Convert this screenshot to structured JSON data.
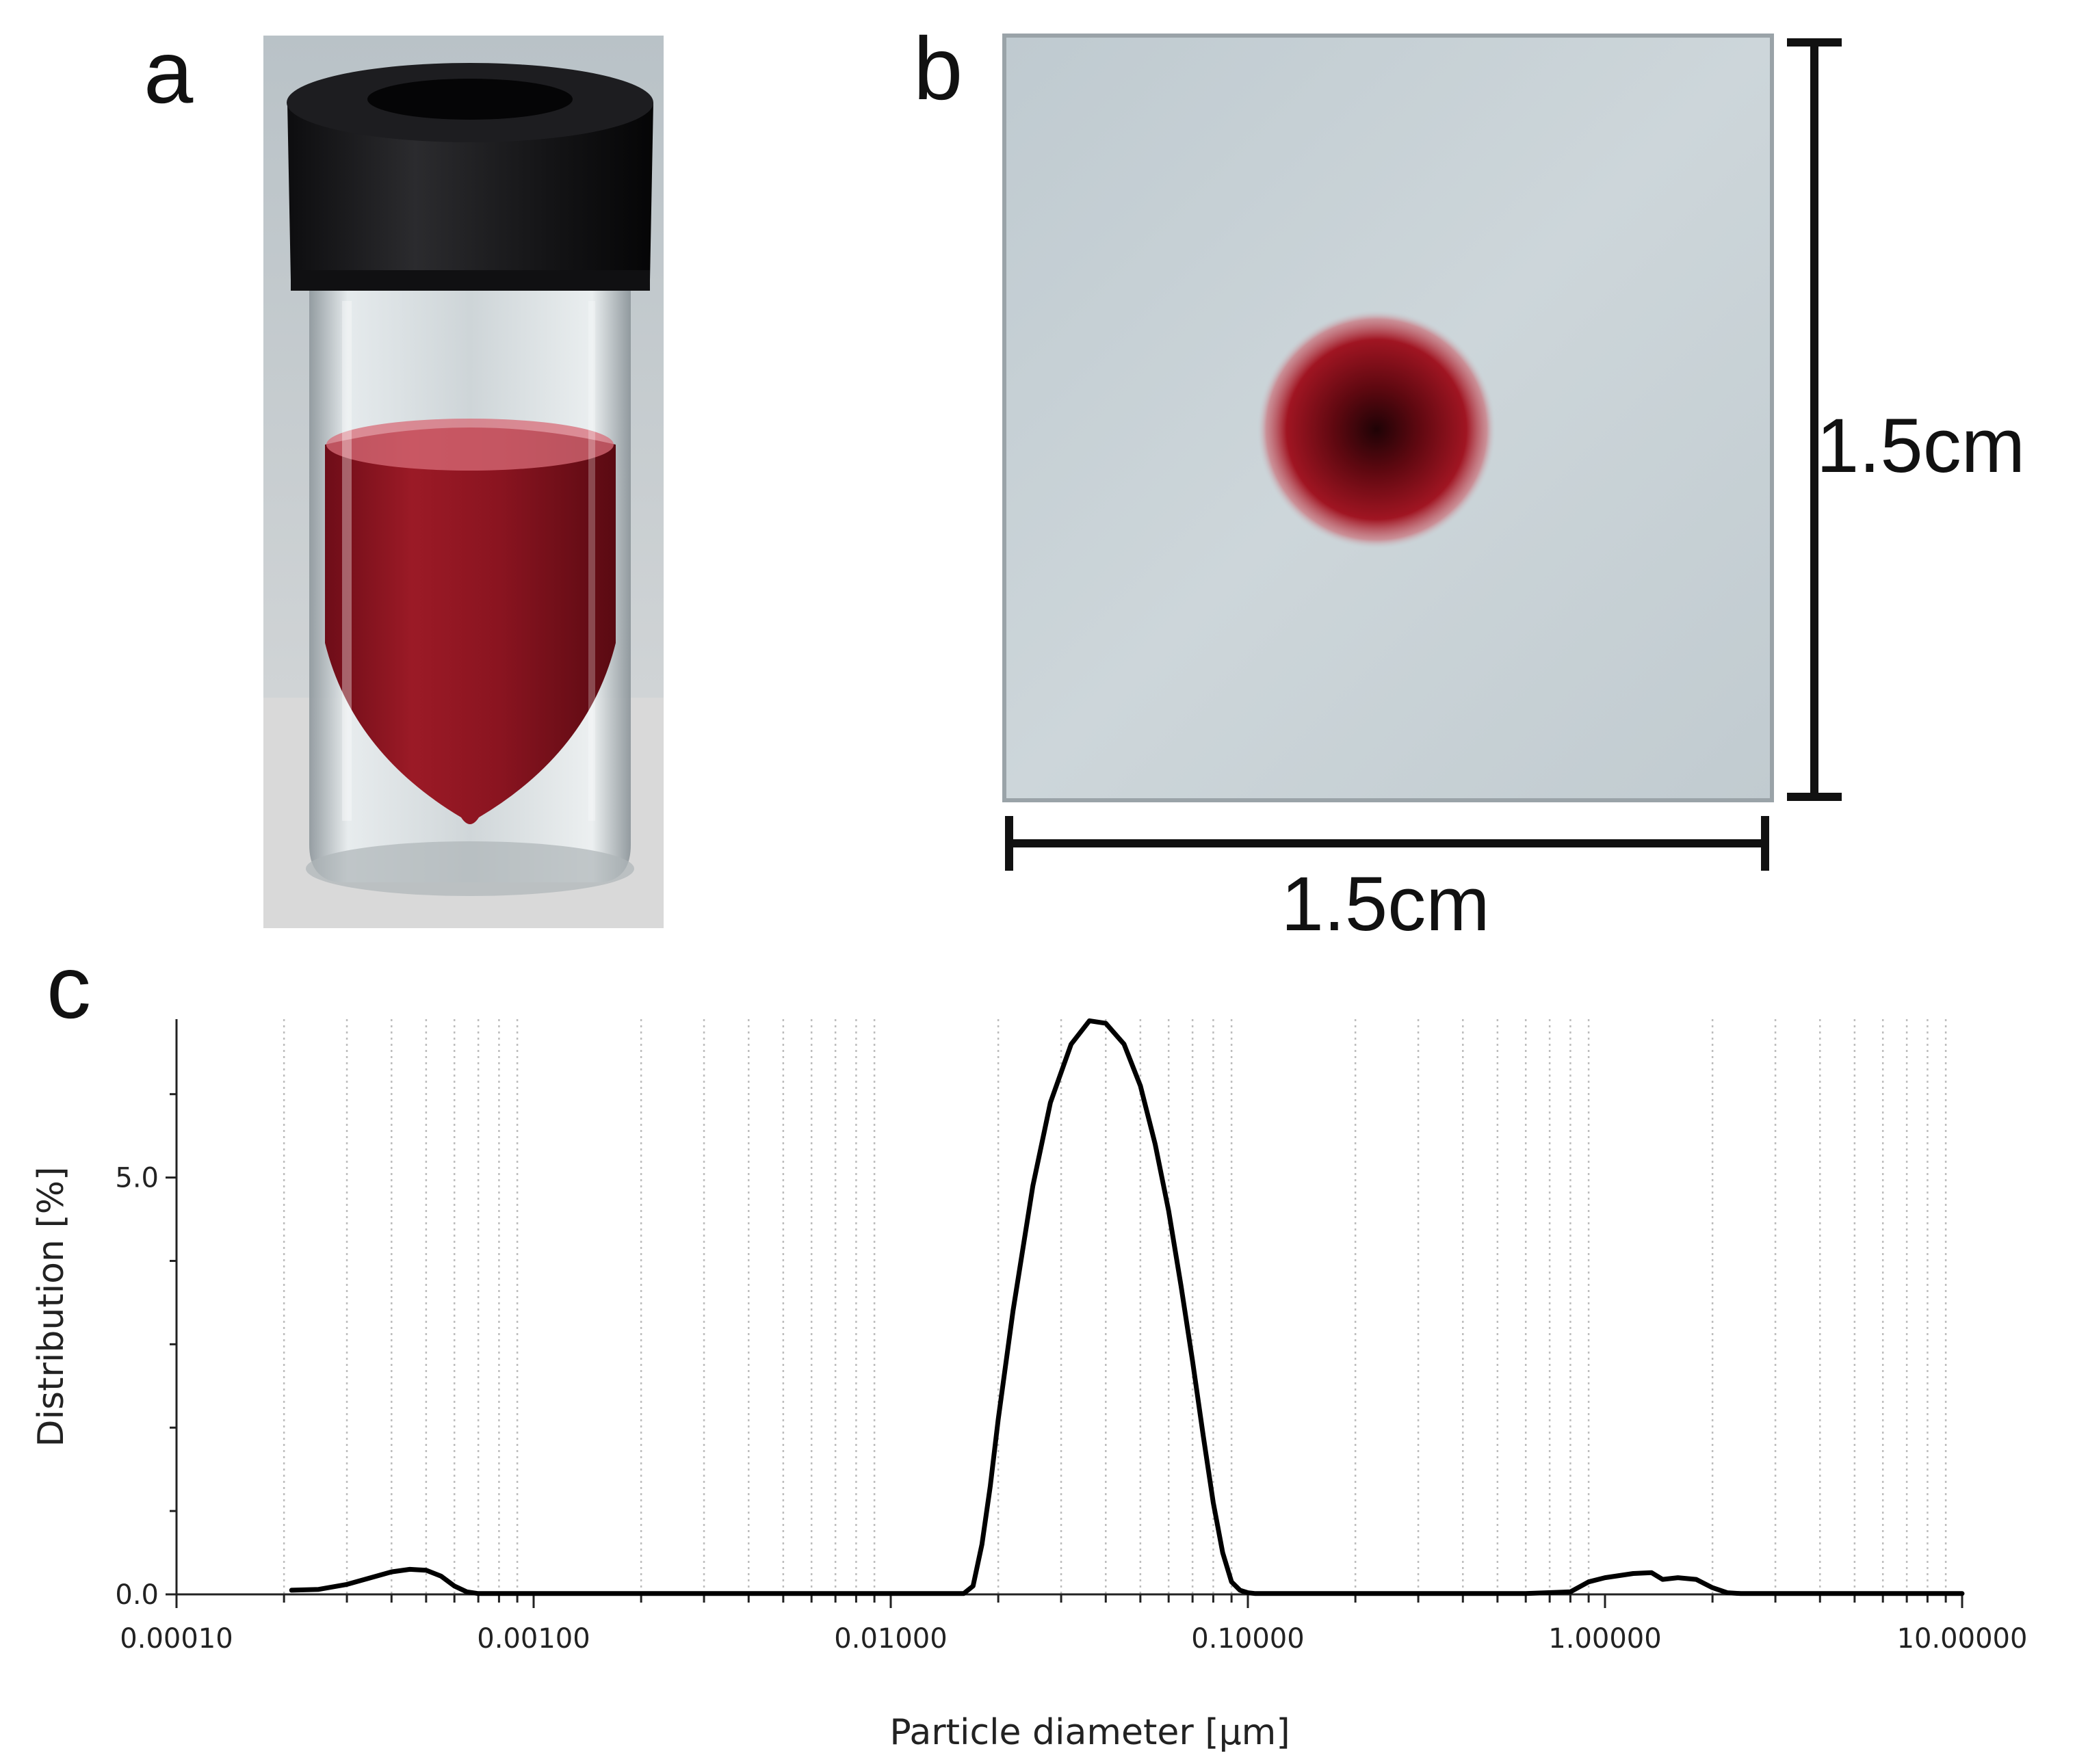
{
  "panels": {
    "a": {
      "letter": "a"
    },
    "b": {
      "letter": "b",
      "width_label": "1.5cm",
      "height_label": "1.5cm"
    },
    "c": {
      "letter": "c"
    }
  },
  "colors": {
    "vial_liquid": "#8f1320",
    "vial_cap": "#1c1c1e",
    "membrane": "#c6d0d5",
    "spot": "#6a0a14",
    "curve": "#000000",
    "grid": "#bdbdbd"
  },
  "chart_data": {
    "type": "line",
    "xscale": "log",
    "xlim": [
      0.0001,
      10
    ],
    "ylim": [
      0,
      6.9
    ],
    "xlabel": "Particle diameter [µm]",
    "ylabel": "Distribution [%]",
    "xticks": [
      {
        "value": 0.0001,
        "label": "0.00010"
      },
      {
        "value": 0.001,
        "label": "0.00100"
      },
      {
        "value": 0.01,
        "label": "0.01000"
      },
      {
        "value": 0.1,
        "label": "0.10000"
      },
      {
        "value": 1,
        "label": "1.00000"
      },
      {
        "value": 10,
        "label": "10.00000"
      }
    ],
    "yticks": [
      {
        "value": 0,
        "label": "0.0"
      },
      {
        "value": 5,
        "label": "5.0"
      }
    ],
    "grid": "vertical-minor-dotted",
    "series": [
      {
        "x": [
          0.00021,
          0.00025,
          0.0003,
          0.00035,
          0.0004,
          0.00045,
          0.0005,
          0.00055,
          0.0006,
          0.00065,
          0.0007,
          0.001,
          0.003,
          0.01,
          0.016,
          0.017,
          0.018,
          0.019,
          0.02,
          0.022,
          0.025,
          0.028,
          0.032,
          0.036,
          0.04,
          0.045,
          0.05,
          0.055,
          0.06,
          0.065,
          0.07,
          0.075,
          0.08,
          0.085,
          0.09,
          0.095,
          0.1,
          0.105,
          0.11,
          0.15,
          0.3,
          0.6,
          0.8,
          0.9,
          1.0,
          1.2,
          1.35,
          1.45,
          1.6,
          1.8,
          2.0,
          2.2,
          2.4,
          3.0,
          10.0
        ],
        "y": [
          0.05,
          0.06,
          0.12,
          0.2,
          0.27,
          0.3,
          0.29,
          0.22,
          0.1,
          0.03,
          0.01,
          0.01,
          0.01,
          0.01,
          0.01,
          0.1,
          0.6,
          1.3,
          2.1,
          3.4,
          4.9,
          5.9,
          6.6,
          6.88,
          6.85,
          6.6,
          6.1,
          5.4,
          4.6,
          3.7,
          2.8,
          1.9,
          1.1,
          0.5,
          0.15,
          0.05,
          0.02,
          0.01,
          0.01,
          0.01,
          0.01,
          0.01,
          0.03,
          0.15,
          0.2,
          0.25,
          0.26,
          0.18,
          0.2,
          0.18,
          0.08,
          0.02,
          0.01,
          0.01,
          0.01
        ]
      }
    ]
  }
}
